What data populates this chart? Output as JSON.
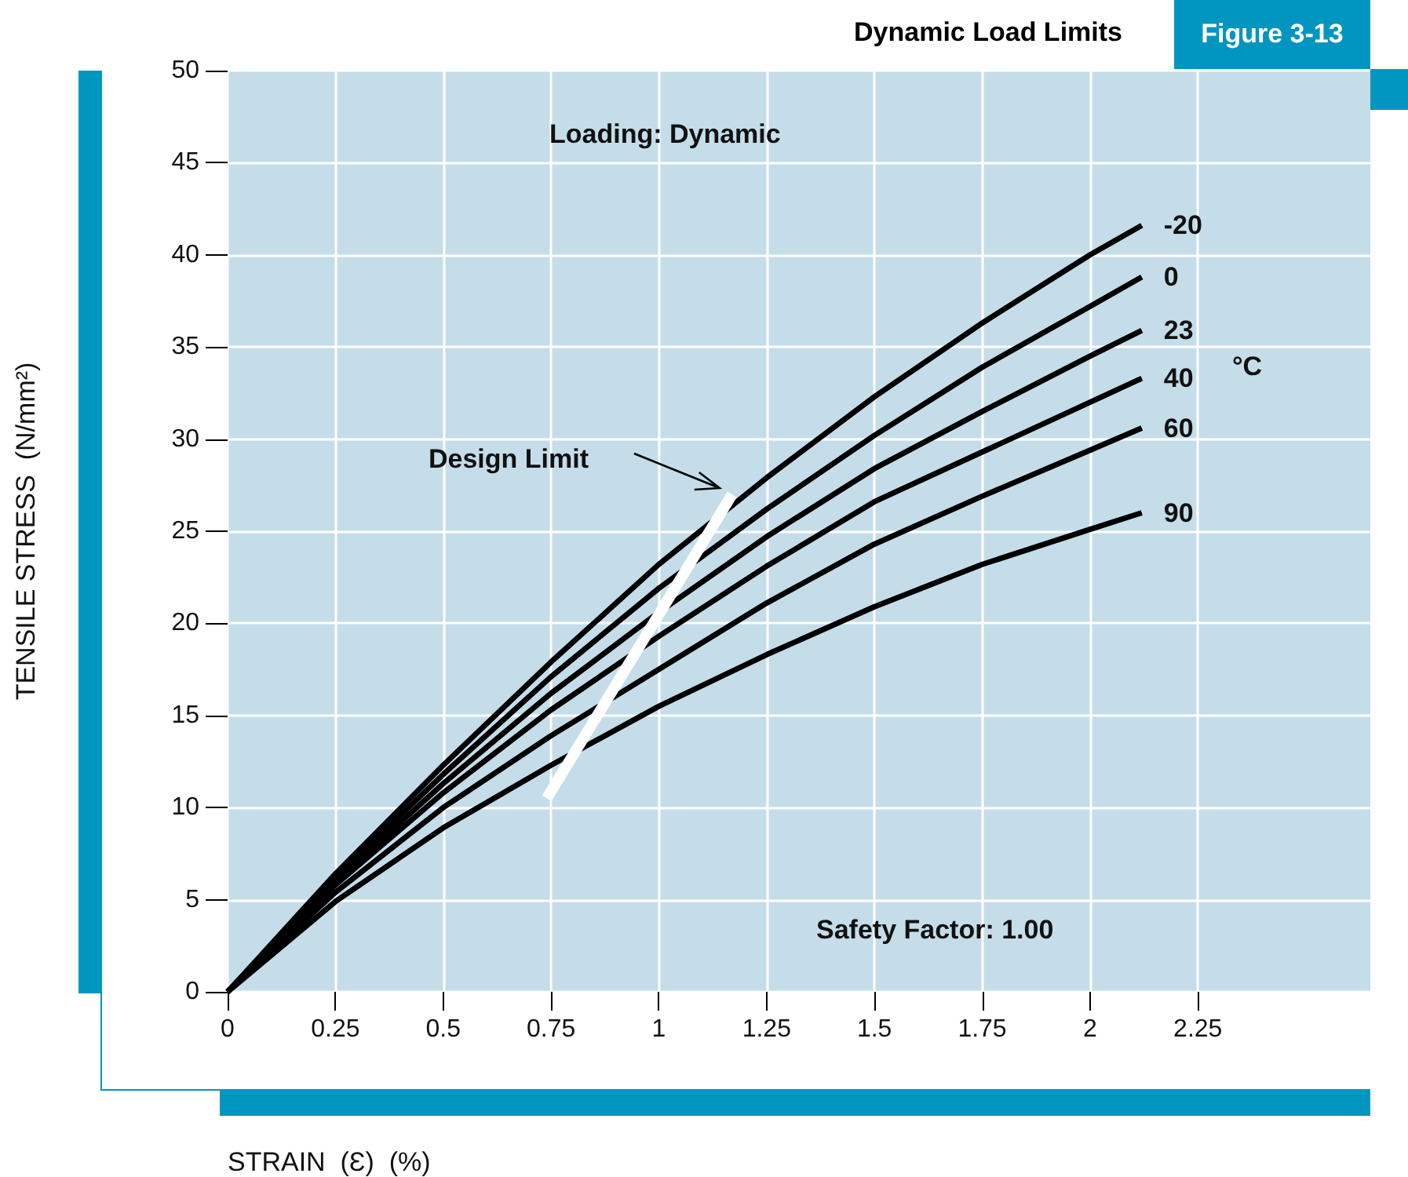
{
  "chart_data": {
    "type": "line",
    "title": "Dynamic Load Limits",
    "subtitle": "Figure 3-13",
    "xlabel": "STRAIN  (Ɛ)  (%)",
    "ylabel": "TENSILE STRESS  (N/mm²)",
    "legend_title": "°C",
    "annotations": [
      "Loading: Dynamic",
      "Safety Factor: 1.00",
      "Design Limit"
    ],
    "x": [
      0,
      0.25,
      0.5,
      0.75,
      1,
      1.25,
      1.5,
      1.75,
      2,
      2.12
    ],
    "series": [
      {
        "name": "-20",
        "color": "#000000",
        "values": [
          0,
          6.4,
          12.3,
          17.9,
          23.2,
          27.9,
          32.3,
          36.3,
          40.0,
          41.6
        ]
      },
      {
        "name": "0",
        "color": "#000000",
        "values": [
          0,
          6.2,
          11.8,
          17.1,
          21.9,
          26.2,
          30.2,
          33.9,
          37.2,
          38.8
        ]
      },
      {
        "name": "23",
        "color": "#000000",
        "values": [
          0,
          6.0,
          11.3,
          16.2,
          20.6,
          24.7,
          28.4,
          31.5,
          34.5,
          35.9
        ]
      },
      {
        "name": "40",
        "color": "#000000",
        "values": [
          0,
          5.8,
          10.8,
          15.3,
          19.3,
          23.1,
          26.6,
          29.3,
          32.0,
          33.3
        ]
      },
      {
        "name": "60",
        "color": "#000000",
        "values": [
          0,
          5.4,
          10.0,
          13.9,
          17.5,
          21.1,
          24.3,
          26.9,
          29.4,
          30.6
        ]
      },
      {
        "name": "90",
        "color": "#000000",
        "values": [
          0,
          4.9,
          8.9,
          12.3,
          15.5,
          18.3,
          20.9,
          23.2,
          25.1,
          26.0
        ]
      },
      {
        "x": [
          0.74,
          1.17
        ],
        "color": "#ffffff",
        "values": [
          10.5,
          27.0
        ]
      }
    ],
    "xlim": [
      0,
      2.65
    ],
    "xticks": [
      0,
      0.25,
      0.5,
      0.75,
      1,
      1.25,
      1.5,
      1.75,
      2,
      2.25
    ],
    "ylim": [
      0,
      50
    ],
    "yticks": [
      0,
      5,
      10,
      15,
      20,
      25,
      30,
      35,
      40,
      45,
      50
    ],
    "grid": true,
    "marker": "none",
    "line_style": "solid"
  }
}
